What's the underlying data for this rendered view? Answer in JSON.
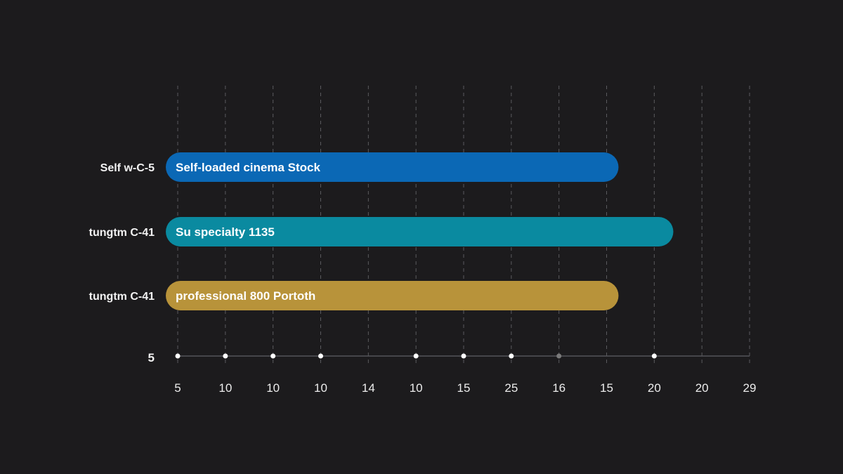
{
  "chart_data": {
    "type": "bar",
    "orientation": "horizontal",
    "grid": true,
    "categories": [
      "Self w-C-5",
      "tungtm C-41",
      "tungtm C-41"
    ],
    "bar_labels": [
      "Self-loaded cinema Stock",
      "Su specialty 1135",
      "professional 800 Portoth"
    ],
    "values": [
      9.25,
      10.4,
      9.25
    ],
    "colors": [
      "#0b68b5",
      "#0a8aa0",
      "#b8933a"
    ],
    "x_tick_labels": [
      "5",
      "10",
      "10",
      "10",
      "14",
      "10",
      "15",
      "25",
      "16",
      "15",
      "20",
      "20",
      "29"
    ],
    "y_axis_label": "5",
    "axis_markers": [
      {
        "tick": 0,
        "color": "#ffffff"
      },
      {
        "tick": 1,
        "color": "#ffffff"
      },
      {
        "tick": 2,
        "color": "#ffffff"
      },
      {
        "tick": 3,
        "color": "#ffffff"
      },
      {
        "tick": 5,
        "color": "#ffffff"
      },
      {
        "tick": 6,
        "color": "#ffffff"
      },
      {
        "tick": 7,
        "color": "#ffffff"
      },
      {
        "tick": 8,
        "color": "#7a7a7a"
      },
      {
        "tick": 10,
        "color": "#ffffff"
      }
    ]
  }
}
